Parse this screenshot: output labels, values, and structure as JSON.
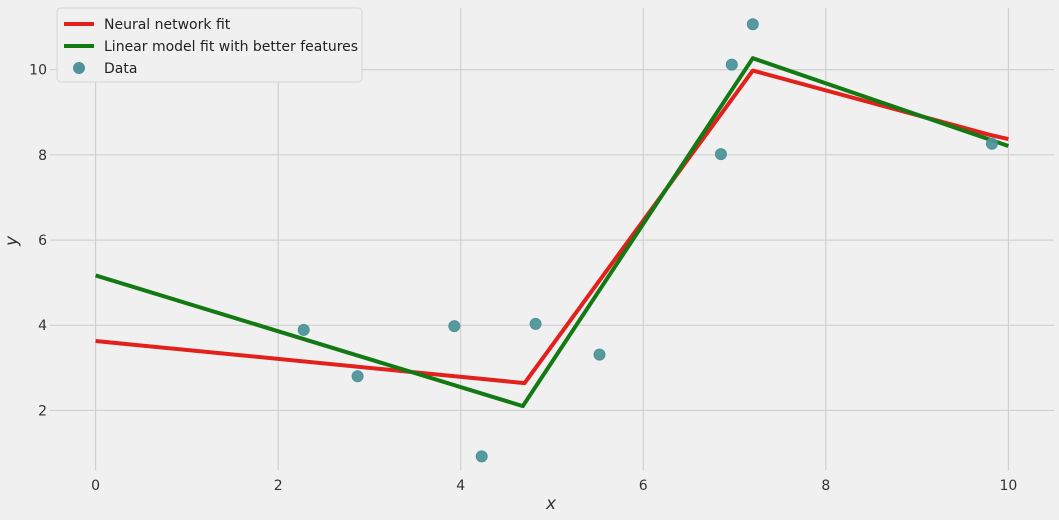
{
  "chart_data": {
    "type": "line",
    "xlabel": "x",
    "ylabel": "y",
    "xlim": [
      -0.5,
      10.5
    ],
    "ylim": [
      0.6,
      11.45
    ],
    "xticks": [
      0,
      2,
      4,
      6,
      8,
      10
    ],
    "yticks": [
      2,
      4,
      6,
      8,
      10
    ],
    "xtick_labels": [
      "0",
      "2",
      "4",
      "6",
      "8",
      "10"
    ],
    "ytick_labels": [
      "2",
      "4",
      "6",
      "8",
      "10"
    ],
    "grid": true,
    "legend_position": "top-left",
    "series": [
      {
        "name": "Neural network fit",
        "kind": "line",
        "color": "#e2201c",
        "x": [
          0,
          4.7,
          7.2,
          9.8,
          10
        ],
        "y": [
          3.63,
          2.64,
          9.98,
          8.47,
          8.37
        ]
      },
      {
        "name": "Linear model fit with better features",
        "kind": "line",
        "color": "#137a13",
        "x": [
          0,
          4.68,
          7.2,
          10
        ],
        "y": [
          5.17,
          2.1,
          10.27,
          8.21
        ]
      },
      {
        "name": "Data",
        "kind": "scatter",
        "color": "#4d9399",
        "x": [
          2.28,
          2.87,
          3.93,
          4.23,
          4.82,
          5.52,
          6.85,
          6.97,
          7.2,
          9.82
        ],
        "y": [
          3.89,
          2.8,
          3.98,
          0.92,
          4.03,
          3.31,
          8.02,
          10.12,
          11.07,
          8.26
        ]
      }
    ]
  }
}
